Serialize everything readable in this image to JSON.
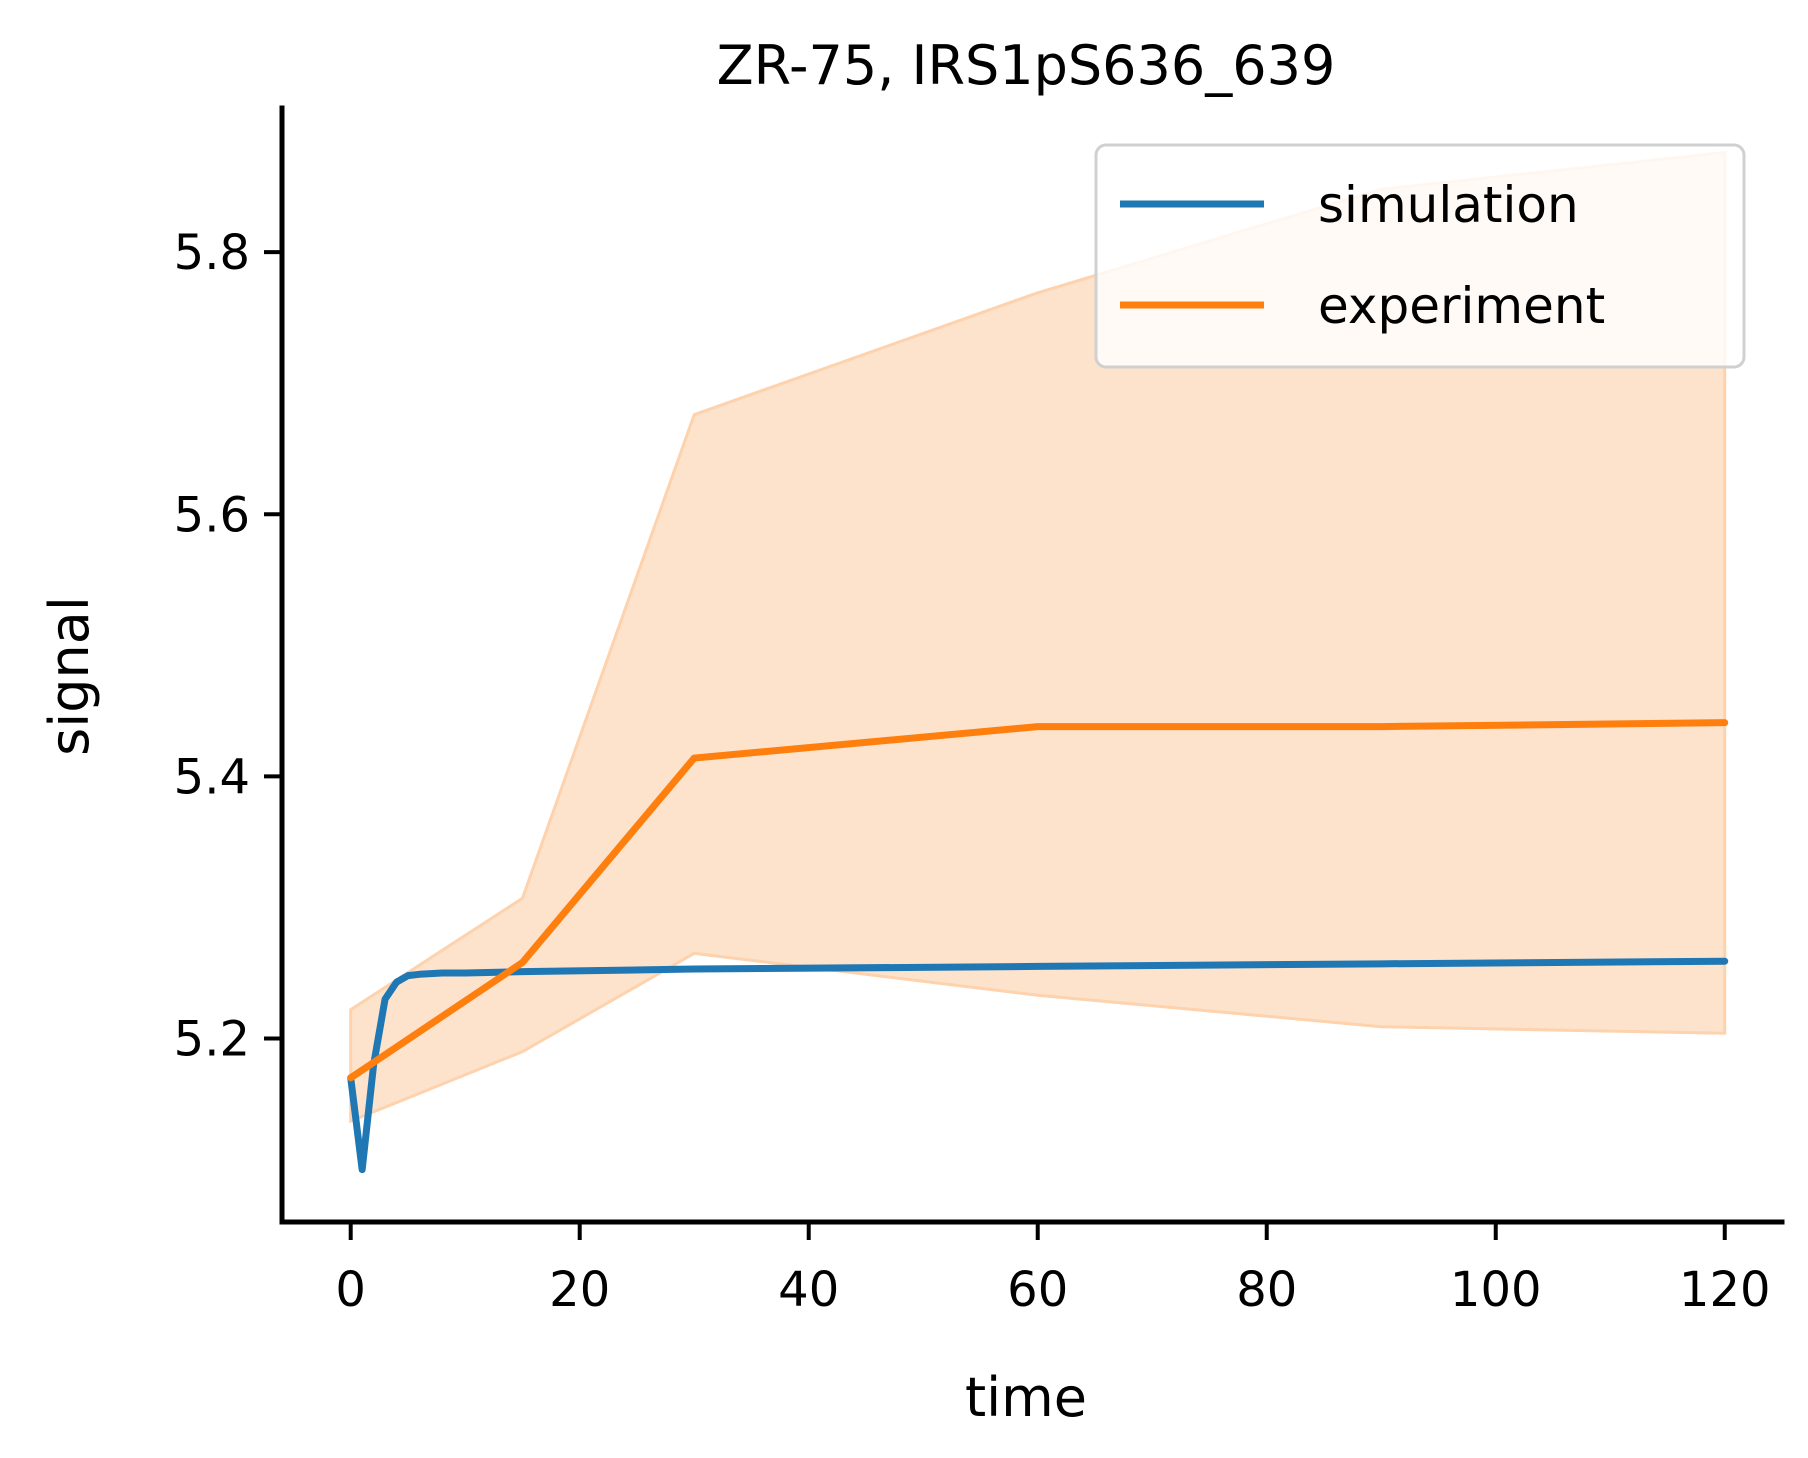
{
  "chart_data": {
    "type": "line",
    "title": "ZR-75, IRS1pS636_639",
    "xlabel": "time",
    "ylabel": "signal",
    "xlim": [
      -6,
      125
    ],
    "ylim": [
      5.06,
      5.91
    ],
    "xticks": [
      0,
      20,
      40,
      60,
      80,
      100,
      120
    ],
    "yticks": [
      5.2,
      5.4,
      5.6,
      5.8
    ],
    "xtick_labels": [
      "0",
      "20",
      "40",
      "60",
      "80",
      "100",
      "120"
    ],
    "ytick_labels": [
      "5.2",
      "5.4",
      "5.6",
      "5.8"
    ],
    "grid": false,
    "legend_position": "top-right",
    "series": [
      {
        "name": "simulation",
        "color": "#1f77b4",
        "x": [
          0,
          1,
          2,
          3,
          4,
          5,
          6,
          8,
          10,
          15,
          30,
          60,
          90,
          120
        ],
        "y": [
          5.17,
          5.1,
          5.18,
          5.23,
          5.243,
          5.248,
          5.249,
          5.25,
          5.25,
          5.251,
          5.253,
          5.255,
          5.257,
          5.259
        ]
      },
      {
        "name": "experiment",
        "color": "#ff7f0e",
        "x": [
          0,
          15,
          30,
          60,
          90,
          120
        ],
        "y": [
          5.17,
          5.258,
          5.414,
          5.438,
          5.438,
          5.441
        ],
        "band_upper": [
          5.222,
          5.307,
          5.676,
          5.769,
          5.848,
          5.876
        ],
        "band_lower": [
          5.137,
          5.19,
          5.265,
          5.233,
          5.209,
          5.204
        ],
        "band_color": "#fde3cc"
      }
    ]
  }
}
